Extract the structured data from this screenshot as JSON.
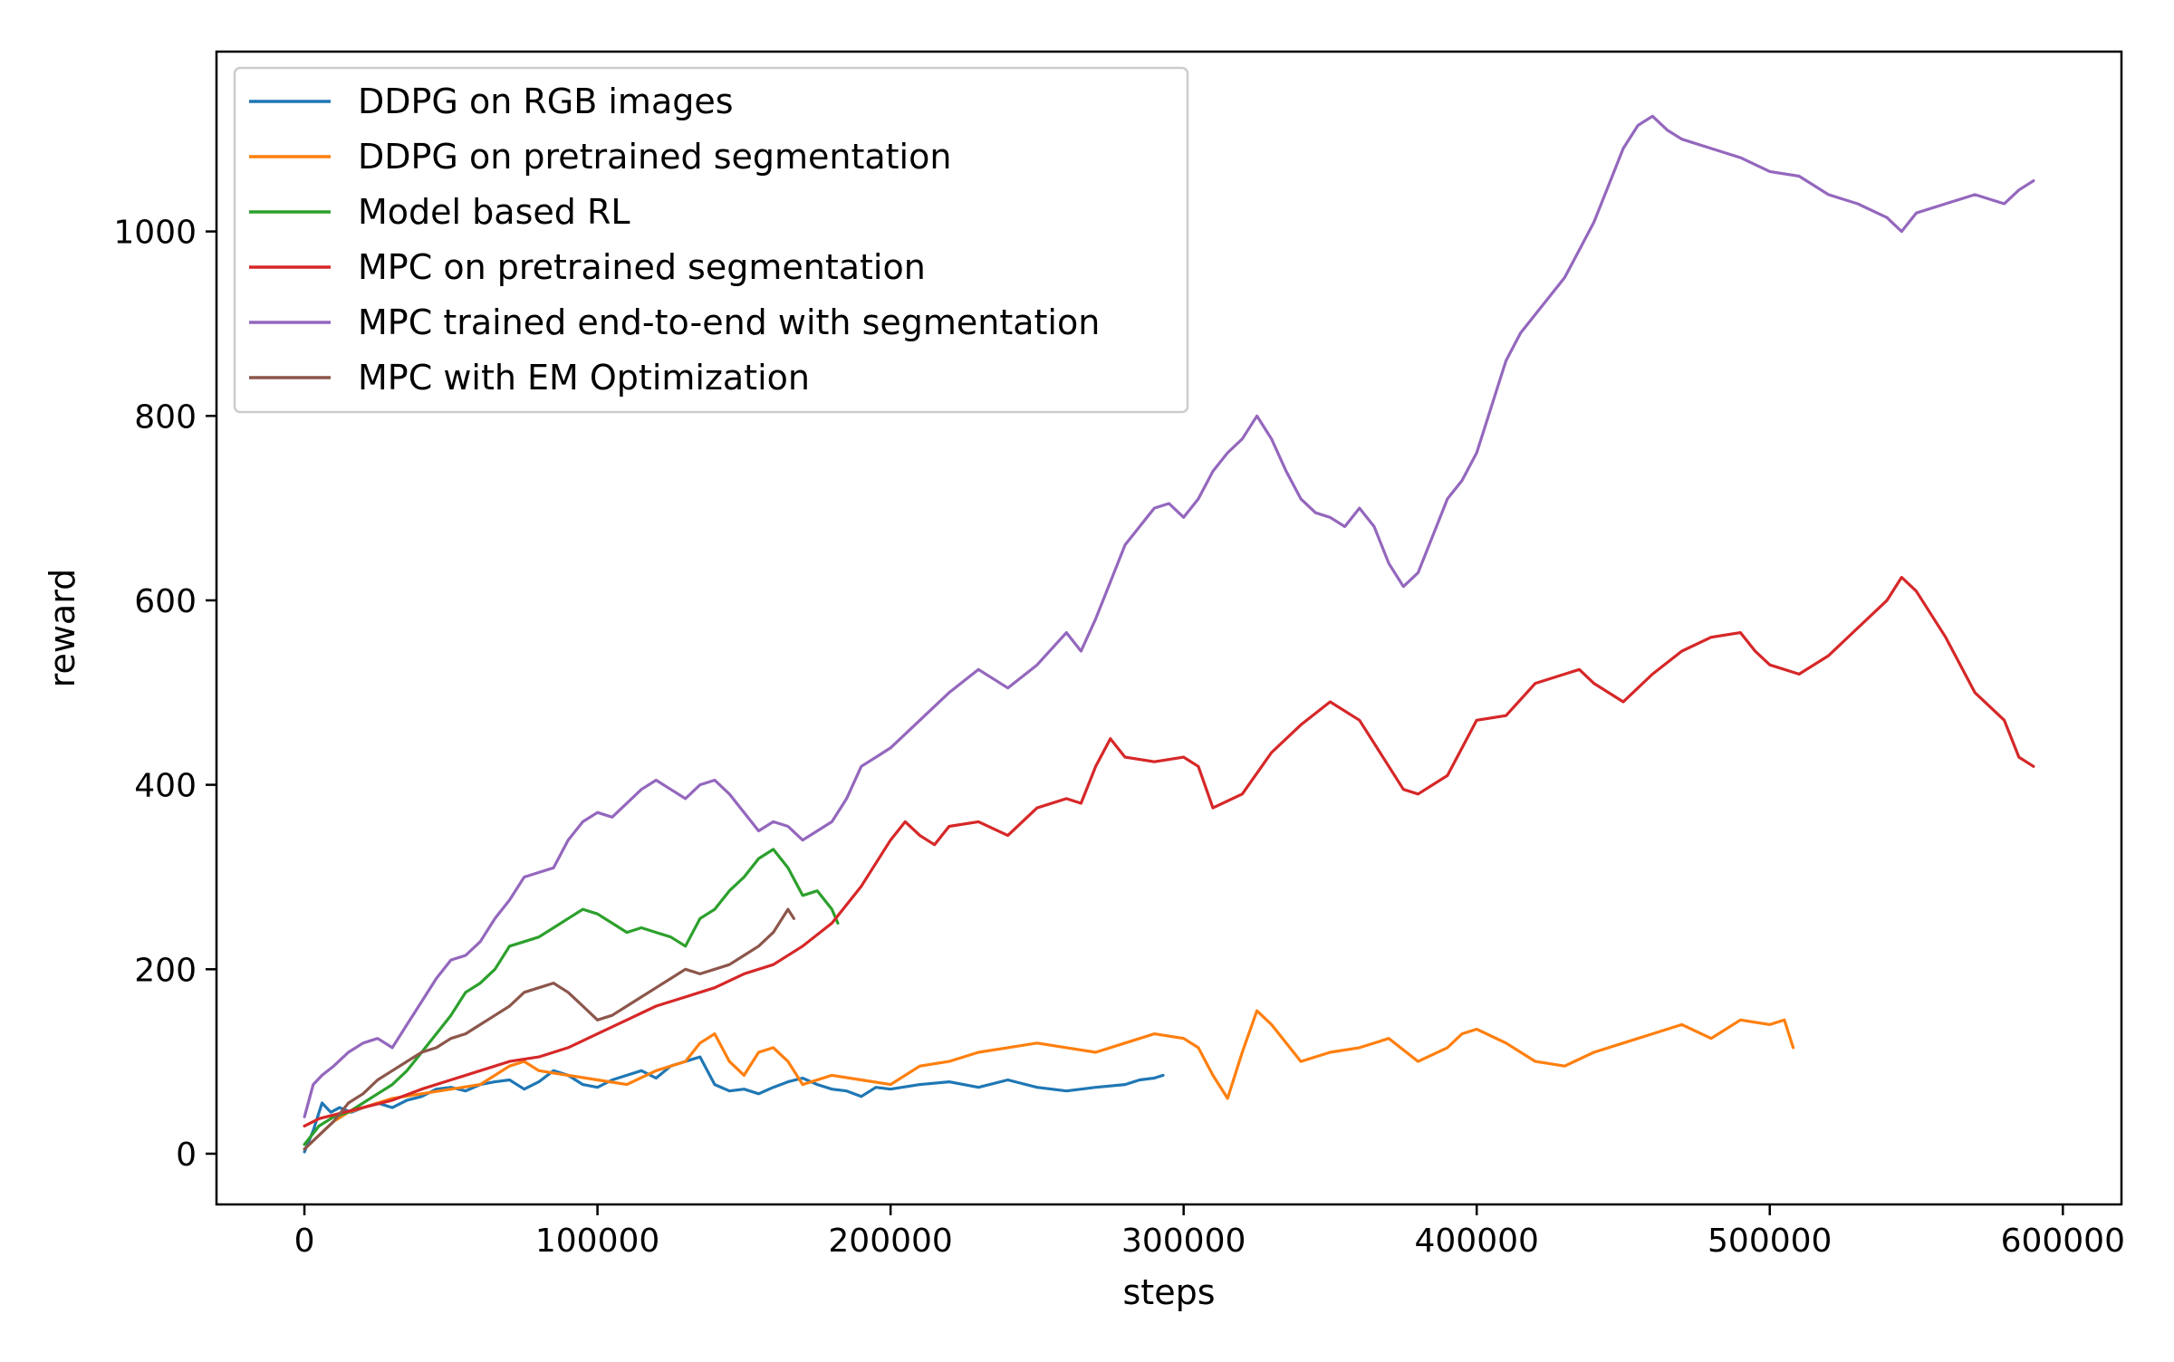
{
  "chart_data": {
    "type": "line",
    "xlabel": "steps",
    "ylabel": "reward",
    "xlim": [
      -30000,
      620000
    ],
    "ylim": [
      -55,
      1195
    ],
    "xticks": [
      0,
      100000,
      200000,
      300000,
      400000,
      500000,
      600000
    ],
    "xtick_labels": [
      "0",
      "100000",
      "200000",
      "300000",
      "400000",
      "500000",
      "600000"
    ],
    "yticks": [
      0,
      200,
      400,
      600,
      800,
      1000
    ],
    "ytick_labels": [
      "0",
      "200",
      "400",
      "600",
      "800",
      "1000"
    ],
    "grid": false,
    "legend_position": "top-left",
    "series": [
      {
        "name": "DDPG on RGB images",
        "color": "#1f77b4",
        "x": [
          0,
          3000,
          6000,
          9000,
          12000,
          16000,
          20000,
          25000,
          30000,
          35000,
          40000,
          45000,
          50000,
          55000,
          60000,
          65000,
          70000,
          75000,
          80000,
          85000,
          90000,
          95000,
          100000,
          105000,
          110000,
          115000,
          120000,
          125000,
          130000,
          135000,
          140000,
          145000,
          150000,
          155000,
          160000,
          165000,
          170000,
          175000,
          180000,
          185000,
          190000,
          195000,
          200000,
          210000,
          220000,
          230000,
          240000,
          250000,
          260000,
          270000,
          280000,
          285000,
          290000,
          293000
        ],
        "y": [
          2,
          25,
          55,
          45,
          50,
          45,
          50,
          55,
          50,
          58,
          62,
          70,
          72,
          68,
          75,
          78,
          80,
          70,
          78,
          90,
          85,
          75,
          72,
          80,
          85,
          90,
          82,
          95,
          100,
          105,
          75,
          68,
          70,
          65,
          72,
          78,
          82,
          75,
          70,
          68,
          62,
          72,
          70,
          75,
          78,
          72,
          80,
          72,
          68,
          72,
          75,
          80,
          82,
          85
        ]
      },
      {
        "name": "DDPG on pretrained segmentation",
        "color": "#ff7f0e",
        "x": [
          0,
          5000,
          10000,
          15000,
          20000,
          25000,
          30000,
          40000,
          50000,
          60000,
          70000,
          75000,
          80000,
          90000,
          100000,
          110000,
          120000,
          130000,
          135000,
          140000,
          145000,
          150000,
          155000,
          160000,
          165000,
          170000,
          180000,
          190000,
          200000,
          210000,
          220000,
          230000,
          240000,
          250000,
          260000,
          270000,
          280000,
          290000,
          300000,
          305000,
          310000,
          315000,
          320000,
          325000,
          330000,
          340000,
          350000,
          360000,
          370000,
          380000,
          390000,
          395000,
          400000,
          410000,
          420000,
          430000,
          440000,
          450000,
          460000,
          470000,
          480000,
          490000,
          500000,
          505000,
          508000
        ],
        "y": [
          5,
          20,
          35,
          45,
          50,
          55,
          60,
          65,
          70,
          75,
          95,
          100,
          90,
          85,
          80,
          75,
          90,
          100,
          120,
          130,
          100,
          85,
          110,
          115,
          100,
          75,
          85,
          80,
          75,
          95,
          100,
          110,
          115,
          120,
          115,
          110,
          120,
          130,
          125,
          115,
          85,
          60,
          110,
          155,
          140,
          100,
          110,
          115,
          125,
          100,
          115,
          130,
          135,
          120,
          100,
          95,
          110,
          120,
          130,
          140,
          125,
          145,
          140,
          145,
          115
        ]
      },
      {
        "name": "Model based RL",
        "color": "#2ca02c",
        "x": [
          0,
          5000,
          10000,
          15000,
          20000,
          25000,
          30000,
          35000,
          40000,
          45000,
          50000,
          55000,
          60000,
          65000,
          70000,
          75000,
          80000,
          85000,
          90000,
          95000,
          100000,
          105000,
          110000,
          115000,
          120000,
          125000,
          130000,
          135000,
          140000,
          145000,
          150000,
          155000,
          160000,
          165000,
          170000,
          175000,
          180000,
          182000
        ],
        "y": [
          10,
          30,
          40,
          45,
          55,
          65,
          75,
          90,
          110,
          130,
          150,
          175,
          185,
          200,
          225,
          230,
          235,
          245,
          255,
          265,
          260,
          250,
          240,
          245,
          240,
          235,
          225,
          255,
          265,
          285,
          300,
          320,
          330,
          310,
          280,
          285,
          265,
          250
        ]
      },
      {
        "name": "MPC on pretrained segmentation",
        "color": "#d62728",
        "x": [
          0,
          5000,
          10000,
          20000,
          30000,
          40000,
          50000,
          60000,
          70000,
          80000,
          90000,
          100000,
          110000,
          120000,
          130000,
          140000,
          150000,
          160000,
          170000,
          180000,
          190000,
          200000,
          205000,
          210000,
          215000,
          220000,
          230000,
          240000,
          250000,
          260000,
          265000,
          270000,
          275000,
          280000,
          290000,
          300000,
          305000,
          310000,
          320000,
          330000,
          340000,
          350000,
          360000,
          370000,
          375000,
          380000,
          390000,
          400000,
          410000,
          420000,
          430000,
          435000,
          440000,
          450000,
          460000,
          470000,
          480000,
          490000,
          495000,
          500000,
          510000,
          520000,
          530000,
          540000,
          545000,
          550000,
          560000,
          570000,
          580000,
          585000,
          590000
        ],
        "y": [
          30,
          38,
          42,
          50,
          58,
          70,
          80,
          90,
          100,
          105,
          115,
          130,
          145,
          160,
          170,
          180,
          195,
          205,
          225,
          250,
          290,
          340,
          360,
          345,
          335,
          355,
          360,
          345,
          375,
          385,
          380,
          420,
          450,
          430,
          425,
          430,
          420,
          375,
          390,
          435,
          465,
          490,
          470,
          420,
          395,
          390,
          410,
          470,
          475,
          510,
          520,
          525,
          510,
          490,
          520,
          545,
          560,
          565,
          545,
          530,
          520,
          540,
          570,
          600,
          625,
          610,
          560,
          500,
          470,
          430,
          420
        ]
      },
      {
        "name": "MPC trained end-to-end with segmentation",
        "color": "#9467bd",
        "x": [
          0,
          3000,
          6000,
          10000,
          15000,
          20000,
          25000,
          30000,
          35000,
          40000,
          45000,
          50000,
          55000,
          60000,
          65000,
          70000,
          75000,
          80000,
          85000,
          90000,
          95000,
          100000,
          105000,
          110000,
          115000,
          120000,
          125000,
          130000,
          135000,
          140000,
          145000,
          150000,
          155000,
          160000,
          165000,
          170000,
          175000,
          180000,
          185000,
          190000,
          195000,
          200000,
          210000,
          220000,
          230000,
          240000,
          250000,
          260000,
          265000,
          270000,
          275000,
          280000,
          285000,
          290000,
          295000,
          300000,
          305000,
          310000,
          315000,
          320000,
          325000,
          330000,
          335000,
          340000,
          345000,
          350000,
          355000,
          360000,
          365000,
          370000,
          375000,
          380000,
          385000,
          390000,
          395000,
          400000,
          405000,
          410000,
          415000,
          420000,
          425000,
          430000,
          435000,
          440000,
          445000,
          450000,
          455000,
          460000,
          465000,
          470000,
          480000,
          490000,
          500000,
          510000,
          520000,
          530000,
          540000,
          545000,
          550000,
          560000,
          570000,
          580000,
          585000,
          590000
        ],
        "y": [
          40,
          75,
          85,
          95,
          110,
          120,
          125,
          115,
          140,
          165,
          190,
          210,
          215,
          230,
          255,
          275,
          300,
          305,
          310,
          340,
          360,
          370,
          365,
          380,
          395,
          405,
          395,
          385,
          400,
          405,
          390,
          370,
          350,
          360,
          355,
          340,
          350,
          360,
          385,
          420,
          430,
          440,
          470,
          500,
          525,
          505,
          530,
          565,
          545,
          580,
          620,
          660,
          680,
          700,
          705,
          690,
          710,
          740,
          760,
          775,
          800,
          775,
          740,
          710,
          695,
          690,
          680,
          700,
          680,
          640,
          615,
          630,
          670,
          710,
          730,
          760,
          810,
          860,
          890,
          910,
          930,
          950,
          980,
          1010,
          1050,
          1090,
          1115,
          1125,
          1110,
          1100,
          1090,
          1080,
          1065,
          1060,
          1040,
          1030,
          1015,
          1000,
          1020,
          1030,
          1040,
          1030,
          1045,
          1055
        ]
      },
      {
        "name": "MPC with EM Optimization",
        "color": "#8c564b",
        "x": [
          0,
          5000,
          10000,
          15000,
          20000,
          25000,
          30000,
          35000,
          40000,
          45000,
          50000,
          55000,
          60000,
          65000,
          70000,
          75000,
          80000,
          85000,
          90000,
          95000,
          100000,
          105000,
          110000,
          115000,
          120000,
          125000,
          130000,
          135000,
          140000,
          145000,
          150000,
          155000,
          160000,
          165000,
          167000
        ],
        "y": [
          5,
          20,
          35,
          55,
          65,
          80,
          90,
          100,
          110,
          115,
          125,
          130,
          140,
          150,
          160,
          175,
          180,
          185,
          175,
          160,
          145,
          150,
          160,
          170,
          180,
          190,
          200,
          195,
          200,
          205,
          215,
          225,
          240,
          265,
          255
        ]
      }
    ]
  }
}
